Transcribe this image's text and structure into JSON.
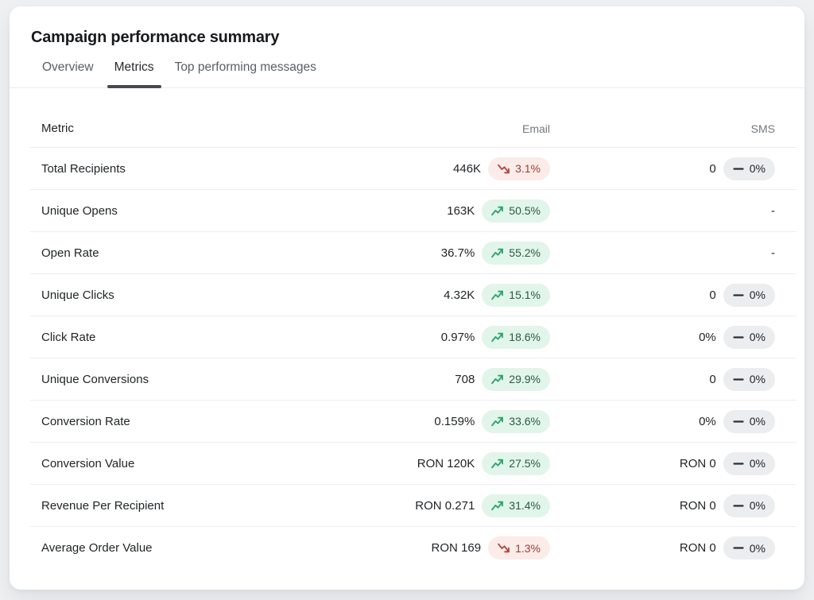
{
  "header": {
    "title": "Campaign performance summary"
  },
  "tabs": [
    {
      "label": "Overview",
      "active": false
    },
    {
      "label": "Metrics",
      "active": true
    },
    {
      "label": "Top performing messages",
      "active": false
    }
  ],
  "table": {
    "columns": [
      "Metric",
      "Email",
      "SMS"
    ],
    "rows": [
      {
        "metric": "Total Recipients",
        "email": {
          "value": "446K",
          "delta": "3.1%",
          "trend": "down"
        },
        "sms": {
          "value": "0",
          "delta": "0%",
          "trend": "flat"
        }
      },
      {
        "metric": "Unique Opens",
        "email": {
          "value": "163K",
          "delta": "50.5%",
          "trend": "up"
        },
        "sms": {
          "value": "-",
          "delta": "",
          "trend": "none"
        }
      },
      {
        "metric": "Open Rate",
        "email": {
          "value": "36.7%",
          "delta": "55.2%",
          "trend": "up"
        },
        "sms": {
          "value": "-",
          "delta": "",
          "trend": "none"
        }
      },
      {
        "metric": "Unique Clicks",
        "email": {
          "value": "4.32K",
          "delta": "15.1%",
          "trend": "up"
        },
        "sms": {
          "value": "0",
          "delta": "0%",
          "trend": "flat"
        }
      },
      {
        "metric": "Click Rate",
        "email": {
          "value": "0.97%",
          "delta": "18.6%",
          "trend": "up"
        },
        "sms": {
          "value": "0%",
          "delta": "0%",
          "trend": "flat"
        }
      },
      {
        "metric": "Unique Conversions",
        "email": {
          "value": "708",
          "delta": "29.9%",
          "trend": "up"
        },
        "sms": {
          "value": "0",
          "delta": "0%",
          "trend": "flat"
        }
      },
      {
        "metric": "Conversion Rate",
        "email": {
          "value": "0.159%",
          "delta": "33.6%",
          "trend": "up"
        },
        "sms": {
          "value": "0%",
          "delta": "0%",
          "trend": "flat"
        }
      },
      {
        "metric": "Conversion Value",
        "email": {
          "value": "RON 120K",
          "delta": "27.5%",
          "trend": "up"
        },
        "sms": {
          "value": "RON 0",
          "delta": "0%",
          "trend": "flat"
        }
      },
      {
        "metric": "Revenue Per Recipient",
        "email": {
          "value": "RON 0.271",
          "delta": "31.4%",
          "trend": "up"
        },
        "sms": {
          "value": "RON 0",
          "delta": "0%",
          "trend": "flat"
        }
      },
      {
        "metric": "Average Order Value",
        "email": {
          "value": "RON 169",
          "delta": "1.3%",
          "trend": "down"
        },
        "sms": {
          "value": "RON 0",
          "delta": "0%",
          "trend": "flat"
        }
      }
    ]
  },
  "colors": {
    "positive_bg": "#e2f5ea",
    "positive_text": "#2b5a43",
    "positive_icon": "#28a268",
    "negative_bg": "#fbece9",
    "negative_text": "#9c3f35",
    "negative_icon": "#b2453c",
    "neutral_bg": "#ebedef",
    "neutral_text": "#212428",
    "neutral_icon": "#2b2e32",
    "active_tab_underline": "#47494d"
  }
}
